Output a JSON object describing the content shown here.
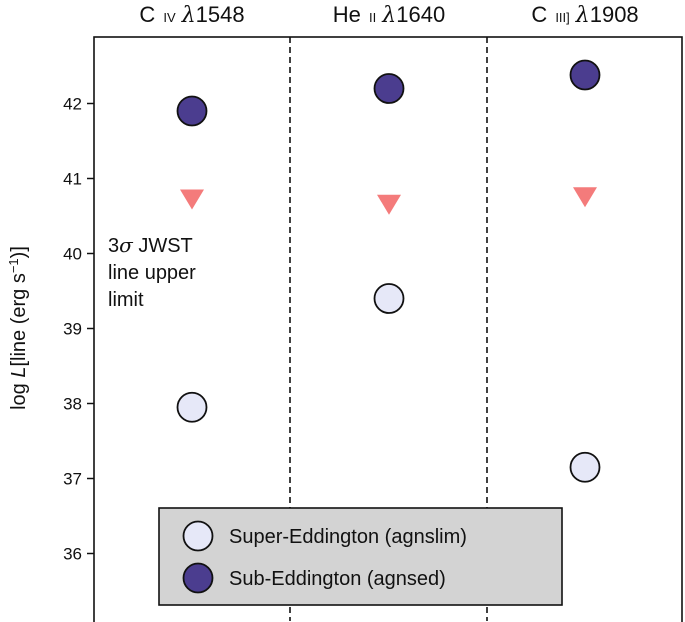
{
  "chart_data": {
    "type": "scatter",
    "categories": [
      "C iv λ1548",
      "He ii λ1640",
      "C iii] λ1908"
    ],
    "category_labels": [
      {
        "prefix": "C ",
        "ion": "IV",
        "lambda": "λ",
        "wave": "1548"
      },
      {
        "prefix": "He ",
        "ion": "II",
        "lambda": "λ",
        "wave": "1640"
      },
      {
        "prefix": "C ",
        "ion": "III]",
        "lambda": "λ",
        "wave": "1908"
      }
    ],
    "series": [
      {
        "name": "Super-Eddington (agnslim)",
        "values": [
          37.95,
          39.4,
          37.15
        ],
        "color": "#e6e8f8",
        "marker": "circle"
      },
      {
        "name": "Sub-Eddington (agnsed)",
        "values": [
          41.9,
          42.2,
          42.38
        ],
        "color": "#4b3d8f",
        "marker": "circle"
      },
      {
        "name": "3σ JWST line upper limit",
        "values": [
          40.72,
          40.65,
          40.75
        ],
        "color": "#f47b7b",
        "marker": "triangle-down"
      }
    ],
    "ylabel": "log L[line (erg s−1)]",
    "ylim": [
      35.3,
      43.3
    ],
    "yticks": [
      36,
      37,
      38,
      39,
      40,
      41,
      42
    ],
    "annotation": [
      "3σ JWST",
      "line upper",
      "limit"
    ],
    "legend": {
      "placement": "bottom-center",
      "background": "#d3d3d3",
      "entries": [
        "Super-Eddington (agnslim)",
        "Sub-Eddington (agnsed)"
      ]
    }
  }
}
